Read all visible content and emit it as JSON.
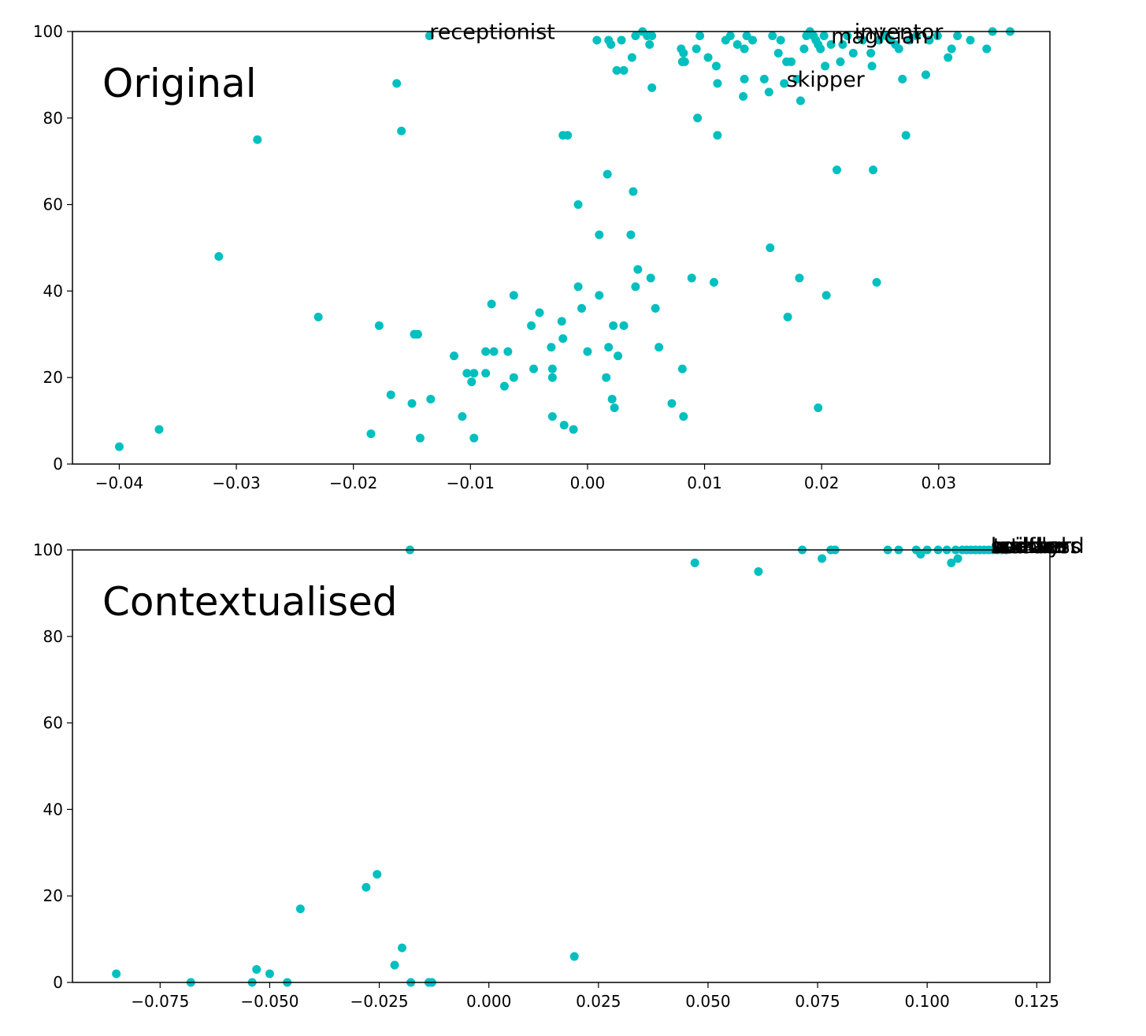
{
  "chart_data": [
    {
      "type": "scatter",
      "title": "Original",
      "xlabel": "",
      "ylabel": "",
      "xlim": [
        -0.044,
        0.0395
      ],
      "ylim": [
        0,
        100
      ],
      "x_ticks": [
        -0.04,
        -0.03,
        -0.02,
        -0.01,
        0.0,
        0.01,
        0.02,
        0.03
      ],
      "x_tick_labels": [
        "−0.04",
        "−0.03",
        "−0.02",
        "−0.01",
        "0.00",
        "0.01",
        "0.02",
        "0.03"
      ],
      "y_ticks": [
        0,
        20,
        40,
        60,
        80,
        100
      ],
      "y_tick_labels": [
        "0",
        "20",
        "40",
        "60",
        "80",
        "100"
      ],
      "grid": false,
      "color": "#00bfbf",
      "points": [
        [
          -0.04,
          4
        ],
        [
          -0.0366,
          8
        ],
        [
          -0.0315,
          48
        ],
        [
          -0.0282,
          75
        ],
        [
          -0.023,
          34
        ],
        [
          -0.0185,
          7
        ],
        [
          -0.0178,
          32
        ],
        [
          -0.0168,
          16
        ],
        [
          -0.0163,
          88
        ],
        [
          -0.0159,
          77
        ],
        [
          -0.015,
          14
        ],
        [
          -0.0148,
          30
        ],
        [
          -0.0145,
          30
        ],
        [
          -0.0143,
          6
        ],
        [
          -0.0134,
          15
        ],
        [
          -0.0135,
          99
        ],
        [
          -0.0114,
          25
        ],
        [
          -0.0107,
          11
        ],
        [
          -0.0103,
          21
        ],
        [
          -0.0099,
          19
        ],
        [
          -0.0097,
          21
        ],
        [
          -0.0097,
          6
        ],
        [
          -0.0087,
          26
        ],
        [
          -0.0087,
          21
        ],
        [
          -0.0082,
          37
        ],
        [
          -0.008,
          26
        ],
        [
          -0.0071,
          18
        ],
        [
          -0.0068,
          26
        ],
        [
          -0.0063,
          39
        ],
        [
          -0.0063,
          20
        ],
        [
          -0.0048,
          32
        ],
        [
          -0.0046,
          22
        ],
        [
          -0.0041,
          35
        ],
        [
          -0.0031,
          27
        ],
        [
          -0.003,
          11
        ],
        [
          -0.003,
          20
        ],
        [
          -0.003,
          22
        ],
        [
          -0.0022,
          33
        ],
        [
          -0.0021,
          29
        ],
        [
          -0.002,
          9
        ],
        [
          -0.0021,
          76
        ],
        [
          -0.0017,
          76
        ],
        [
          -0.0012,
          8
        ],
        [
          -0.0008,
          60
        ],
        [
          -0.0008,
          41
        ],
        [
          -0.0005,
          36
        ],
        [
          0.0,
          26
        ],
        [
          0.0008,
          98
        ],
        [
          0.001,
          53
        ],
        [
          0.001,
          39
        ],
        [
          0.0017,
          67
        ],
        [
          0.0016,
          20
        ],
        [
          0.0018,
          27
        ],
        [
          0.0018,
          98
        ],
        [
          0.002,
          97
        ],
        [
          0.0021,
          15
        ],
        [
          0.0022,
          32
        ],
        [
          0.0023,
          13
        ],
        [
          0.0025,
          91
        ],
        [
          0.0026,
          25
        ],
        [
          0.0029,
          98
        ],
        [
          0.0031,
          32
        ],
        [
          0.0031,
          91
        ],
        [
          0.0037,
          53
        ],
        [
          0.0038,
          94
        ],
        [
          0.0039,
          63
        ],
        [
          0.0041,
          99
        ],
        [
          0.0041,
          41
        ],
        [
          0.0043,
          45
        ],
        [
          0.0047,
          100
        ],
        [
          0.0051,
          99
        ],
        [
          0.0053,
          97
        ],
        [
          0.0054,
          43
        ],
        [
          0.0055,
          99
        ],
        [
          0.0055,
          87
        ],
        [
          0.0058,
          36
        ],
        [
          0.0061,
          27
        ],
        [
          0.0072,
          14
        ],
        [
          0.008,
          96
        ],
        [
          0.0081,
          93
        ],
        [
          0.0081,
          22
        ],
        [
          0.0082,
          11
        ],
        [
          0.0082,
          95
        ],
        [
          0.0083,
          93
        ],
        [
          0.0089,
          43
        ],
        [
          0.0093,
          96
        ],
        [
          0.0094,
          80
        ],
        [
          0.0096,
          99
        ],
        [
          0.0103,
          94
        ],
        [
          0.0108,
          42
        ],
        [
          0.011,
          92
        ],
        [
          0.0111,
          88
        ],
        [
          0.0111,
          76
        ],
        [
          0.0118,
          98
        ],
        [
          0.0122,
          99
        ],
        [
          0.0128,
          97
        ],
        [
          0.0133,
          85
        ],
        [
          0.0134,
          89
        ],
        [
          0.0134,
          96
        ],
        [
          0.0136,
          99
        ],
        [
          0.0141,
          98
        ],
        [
          0.0151,
          89
        ],
        [
          0.0155,
          86
        ],
        [
          0.0156,
          50
        ],
        [
          0.0158,
          99
        ],
        [
          0.0163,
          95
        ],
        [
          0.0165,
          98
        ],
        [
          0.0168,
          88
        ],
        [
          0.017,
          93
        ],
        [
          0.0171,
          34
        ],
        [
          0.0174,
          93
        ],
        [
          0.0179,
          89
        ],
        [
          0.0181,
          43
        ],
        [
          0.0182,
          84
        ],
        [
          0.0185,
          96
        ],
        [
          0.0187,
          99
        ],
        [
          0.019,
          100
        ],
        [
          0.0193,
          99
        ],
        [
          0.0195,
          98
        ],
        [
          0.0197,
          97
        ],
        [
          0.0197,
          13
        ],
        [
          0.0199,
          96
        ],
        [
          0.0202,
          99
        ],
        [
          0.0203,
          92
        ],
        [
          0.0204,
          39
        ],
        [
          0.0208,
          97
        ],
        [
          0.0213,
          68
        ],
        [
          0.0216,
          93
        ],
        [
          0.0218,
          97
        ],
        [
          0.0222,
          99
        ],
        [
          0.0227,
          95
        ],
        [
          0.0235,
          98
        ],
        [
          0.0242,
          95
        ],
        [
          0.0243,
          92
        ],
        [
          0.0244,
          68
        ],
        [
          0.0247,
          42
        ],
        [
          0.0249,
          98
        ],
        [
          0.0255,
          99
        ],
        [
          0.0259,
          98
        ],
        [
          0.0263,
          97
        ],
        [
          0.0266,
          96
        ],
        [
          0.0269,
          89
        ],
        [
          0.0272,
          76
        ],
        [
          0.0275,
          98
        ],
        [
          0.0281,
          99
        ],
        [
          0.0289,
          90
        ],
        [
          0.0292,
          98
        ],
        [
          0.0299,
          99
        ],
        [
          0.0308,
          94
        ],
        [
          0.0311,
          96
        ],
        [
          0.0316,
          99
        ],
        [
          0.0327,
          98
        ],
        [
          0.0341,
          96
        ],
        [
          0.0346,
          100
        ],
        [
          0.0361,
          100
        ]
      ],
      "annotations": [
        {
          "text": "receptionist",
          "x": -0.0135,
          "y": 99
        },
        {
          "text": "inventor",
          "x": 0.0228,
          "y": 99
        },
        {
          "text": "magician",
          "x": 0.0208,
          "y": 98
        },
        {
          "text": "skipper",
          "x": 0.017,
          "y": 88
        }
      ]
    },
    {
      "type": "scatter",
      "title": "Contextualised",
      "xlabel": "",
      "ylabel": "",
      "xlim": [
        -0.095,
        0.128
      ],
      "ylim": [
        0,
        100
      ],
      "x_ticks": [
        -0.075,
        -0.05,
        -0.025,
        0.0,
        0.025,
        0.05,
        0.075,
        0.1,
        0.125
      ],
      "x_tick_labels": [
        "−0.075",
        "−0.050",
        "−0.025",
        "0.000",
        "0.025",
        "0.050",
        "0.075",
        "0.100",
        "0.125"
      ],
      "y_ticks": [
        0,
        20,
        40,
        60,
        80,
        100
      ],
      "y_tick_labels": [
        "0",
        "20",
        "40",
        "60",
        "80",
        "100"
      ],
      "grid": false,
      "color": "#00bfbf",
      "points": [
        [
          -0.085,
          2
        ],
        [
          -0.068,
          0
        ],
        [
          -0.054,
          0
        ],
        [
          -0.053,
          3
        ],
        [
          -0.05,
          2
        ],
        [
          -0.046,
          0
        ],
        [
          -0.043,
          17
        ],
        [
          -0.028,
          22
        ],
        [
          -0.0255,
          25
        ],
        [
          -0.0215,
          4
        ],
        [
          -0.0198,
          8
        ],
        [
          -0.0178,
          0
        ],
        [
          -0.0137,
          0
        ],
        [
          -0.013,
          0
        ],
        [
          -0.018,
          100
        ],
        [
          0.0195,
          6
        ],
        [
          0.047,
          97
        ],
        [
          0.0615,
          95
        ],
        [
          0.0715,
          100
        ],
        [
          0.076,
          98
        ],
        [
          0.078,
          100
        ],
        [
          0.079,
          100
        ],
        [
          0.091,
          100
        ],
        [
          0.0935,
          100
        ],
        [
          0.0975,
          100
        ],
        [
          0.0985,
          99
        ],
        [
          0.1,
          100
        ],
        [
          0.1025,
          100
        ],
        [
          0.1045,
          100
        ],
        [
          0.1055,
          97
        ],
        [
          0.1065,
          100
        ],
        [
          0.107,
          98
        ],
        [
          0.108,
          100
        ],
        [
          0.109,
          100
        ],
        [
          0.11,
          100
        ],
        [
          0.111,
          100
        ],
        [
          0.112,
          100
        ],
        [
          0.113,
          100
        ],
        [
          0.114,
          100
        ],
        [
          0.115,
          100
        ],
        [
          0.116,
          100
        ],
        [
          0.117,
          100
        ],
        [
          0.118,
          100
        ]
      ],
      "annotations": [
        {
          "text": "builder",
          "x": 0.1145,
          "y": 100
        },
        {
          "text": "seafarer",
          "x": 0.1145,
          "y": 100
        },
        {
          "text": "toddler",
          "x": 0.115,
          "y": 100
        },
        {
          "text": "wizard",
          "x": 0.116,
          "y": 100
        },
        {
          "text": "steward",
          "x": 0.1165,
          "y": 100
        },
        {
          "text": "waitress",
          "x": 0.115,
          "y": 100
        },
        {
          "text": "nanny",
          "x": 0.1155,
          "y": 100
        }
      ]
    }
  ]
}
